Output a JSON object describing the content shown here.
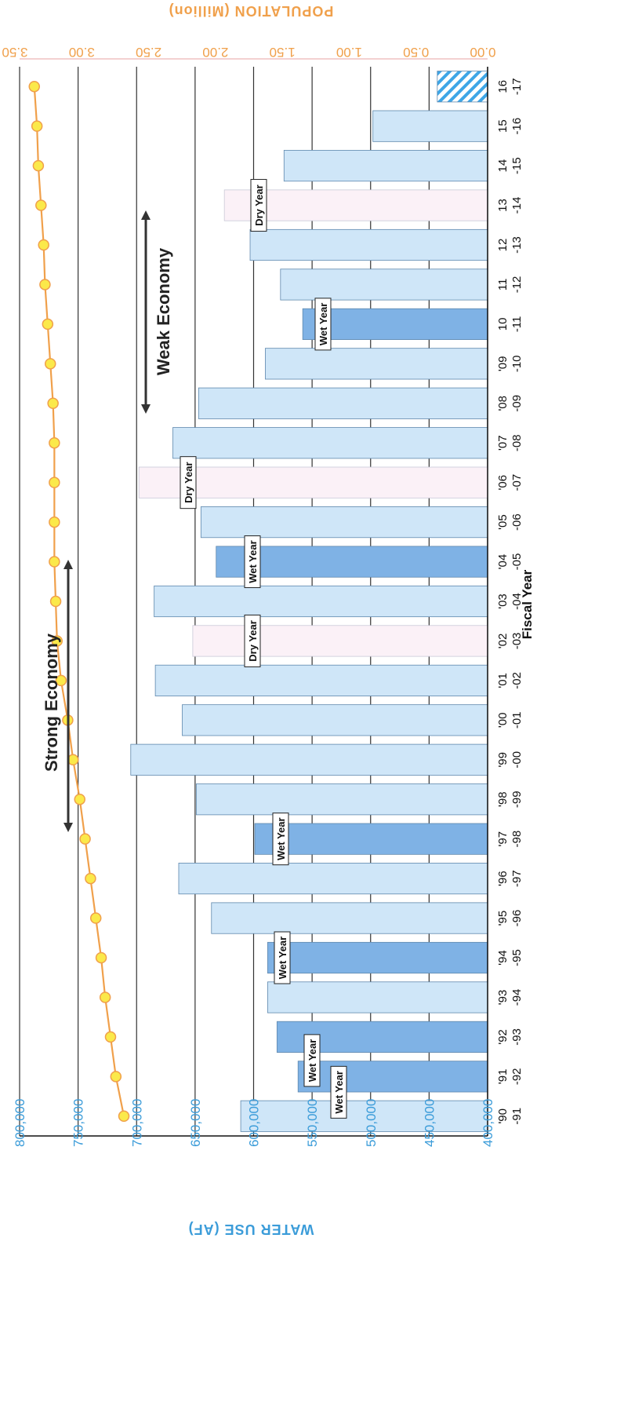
{
  "chart_data": {
    "type": "bar",
    "xlabel": "Fiscal Year",
    "ylabel": "WATER USE (AF)",
    "y2label": "POPULATION (Million)",
    "ylim": [
      400000,
      800000
    ],
    "y2lim": [
      0,
      3.5
    ],
    "yticks": [
      "400,000",
      "450,000",
      "500,000",
      "550,000",
      "600,000",
      "650,000",
      "700,000",
      "750,000",
      "800,000"
    ],
    "y2ticks": [
      "0.00",
      "0.50",
      "1.00",
      "1.50",
      "2.00",
      "2.50",
      "3.00",
      "3.50"
    ],
    "categories": [
      {
        "top": "'90",
        "bottom": "-91"
      },
      {
        "top": "'91",
        "bottom": "-92"
      },
      {
        "top": "'92",
        "bottom": "-93"
      },
      {
        "top": "'93",
        "bottom": "-94"
      },
      {
        "top": "'94",
        "bottom": "-95"
      },
      {
        "top": "'95",
        "bottom": "-96"
      },
      {
        "top": "'96",
        "bottom": "-97"
      },
      {
        "top": "'97",
        "bottom": "-98"
      },
      {
        "top": "'98",
        "bottom": "-99"
      },
      {
        "top": "'99",
        "bottom": "-00"
      },
      {
        "top": "'00",
        "bottom": "-01"
      },
      {
        "top": "'01",
        "bottom": "-02"
      },
      {
        "top": "'02",
        "bottom": "-03"
      },
      {
        "top": "'03",
        "bottom": "-04"
      },
      {
        "top": "'04",
        "bottom": "-05"
      },
      {
        "top": "'05",
        "bottom": "-06"
      },
      {
        "top": "'06",
        "bottom": "-07"
      },
      {
        "top": "'07",
        "bottom": "-08"
      },
      {
        "top": "'08",
        "bottom": "-09"
      },
      {
        "top": "'09",
        "bottom": "-10"
      },
      {
        "top": "10",
        "bottom": "-11"
      },
      {
        "top": "11",
        "bottom": "-12"
      },
      {
        "top": "12",
        "bottom": "-13"
      },
      {
        "top": "13",
        "bottom": "-14"
      },
      {
        "top": "14",
        "bottom": "-15"
      },
      {
        "top": "15",
        "bottom": "-16"
      },
      {
        "top": "16",
        "bottom": "-17"
      }
    ],
    "series": [
      {
        "kind": "bar",
        "values": [
          611000,
          562000,
          580000,
          588000,
          588000,
          636000,
          664000,
          599000,
          649000,
          705000,
          661000,
          684000,
          652000,
          685000,
          632000,
          645000,
          698000,
          669000,
          647000,
          590000,
          558000,
          577000,
          603000,
          625000,
          574000,
          498000,
          443000
        ],
        "year_type": [
          "normal",
          "wet",
          "wet",
          "normal",
          "wet",
          "normal",
          "normal",
          "wet",
          "normal",
          "normal",
          "normal",
          "normal",
          "dry",
          "normal",
          "wet",
          "normal",
          "dry",
          "normal",
          "normal",
          "normal",
          "wet",
          "normal",
          "normal",
          "dry",
          "normal",
          "normal",
          "estimate"
        ]
      },
      {
        "kind": "line",
        "values": [
          2.72,
          2.78,
          2.82,
          2.86,
          2.89,
          2.93,
          2.97,
          3.01,
          3.05,
          3.1,
          3.14,
          3.19,
          3.22,
          3.23,
          3.24,
          3.24,
          3.24,
          3.24,
          3.25,
          3.27,
          3.29,
          3.31,
          3.32,
          3.34,
          3.36,
          3.37,
          3.39
        ]
      }
    ],
    "colors": {
      "normal": "#cfe6f8",
      "wet": "#7fb2e5",
      "dry": "#fbf1f7",
      "estimate": "#3ea6e6",
      "population": "#f0a04b",
      "marker": "#fbe94a"
    },
    "annotations": {
      "strong_economy": "Strong Economy",
      "weak_economy": "Weak Economy",
      "wet_year": "Wet Year",
      "dry_year": "Dry Year"
    },
    "grid": true
  }
}
